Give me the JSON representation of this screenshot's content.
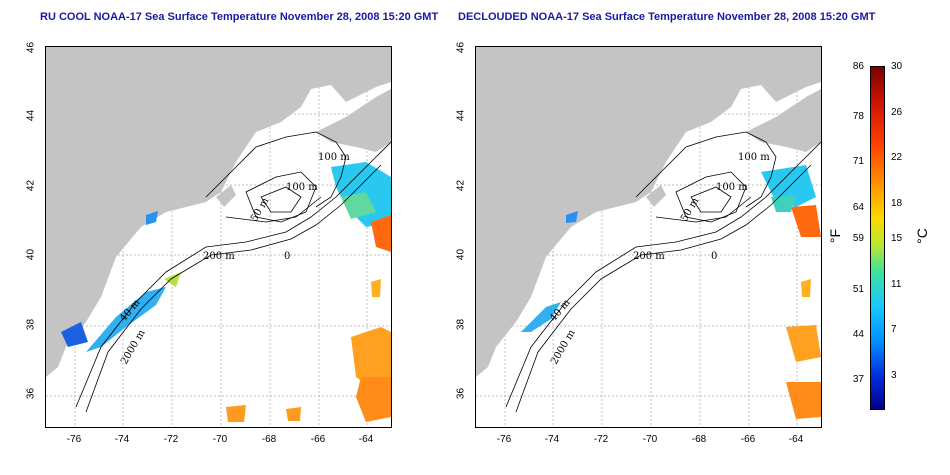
{
  "titles": {
    "left": "RU COOL NOAA-17 Sea Surface Temperature November 28, 2008 15:20 GMT",
    "right": "DECLOUDED NOAA-17 Sea Surface Temperature November 28, 2008 15:20 GMT"
  },
  "lat_ticks": [
    "46",
    "44",
    "42",
    "40",
    "38",
    "36"
  ],
  "lon_ticks": [
    "-76",
    "-74",
    "-72",
    "-70",
    "-68",
    "-66",
    "-64"
  ],
  "contour_labels": {
    "c100a": "100 m",
    "c100b": "100 m",
    "c50": "50 m",
    "c200": "200 m",
    "c40": "40 m",
    "c2000": "2000 m",
    "zero": "0"
  },
  "colorbar": {
    "fahrenheit": [
      "86",
      "78",
      "71",
      "64",
      "59",
      "51",
      "44",
      "37"
    ],
    "celsius": [
      "30",
      "26",
      "22",
      "18",
      "15",
      "11",
      "7",
      "3"
    ],
    "unit_f": "°F",
    "unit_c": "°C",
    "range_c": [
      0,
      30
    ]
  },
  "colors": {
    "land": "#c4c4c4",
    "title": "#1a1aa0",
    "grid": "#999999"
  }
}
